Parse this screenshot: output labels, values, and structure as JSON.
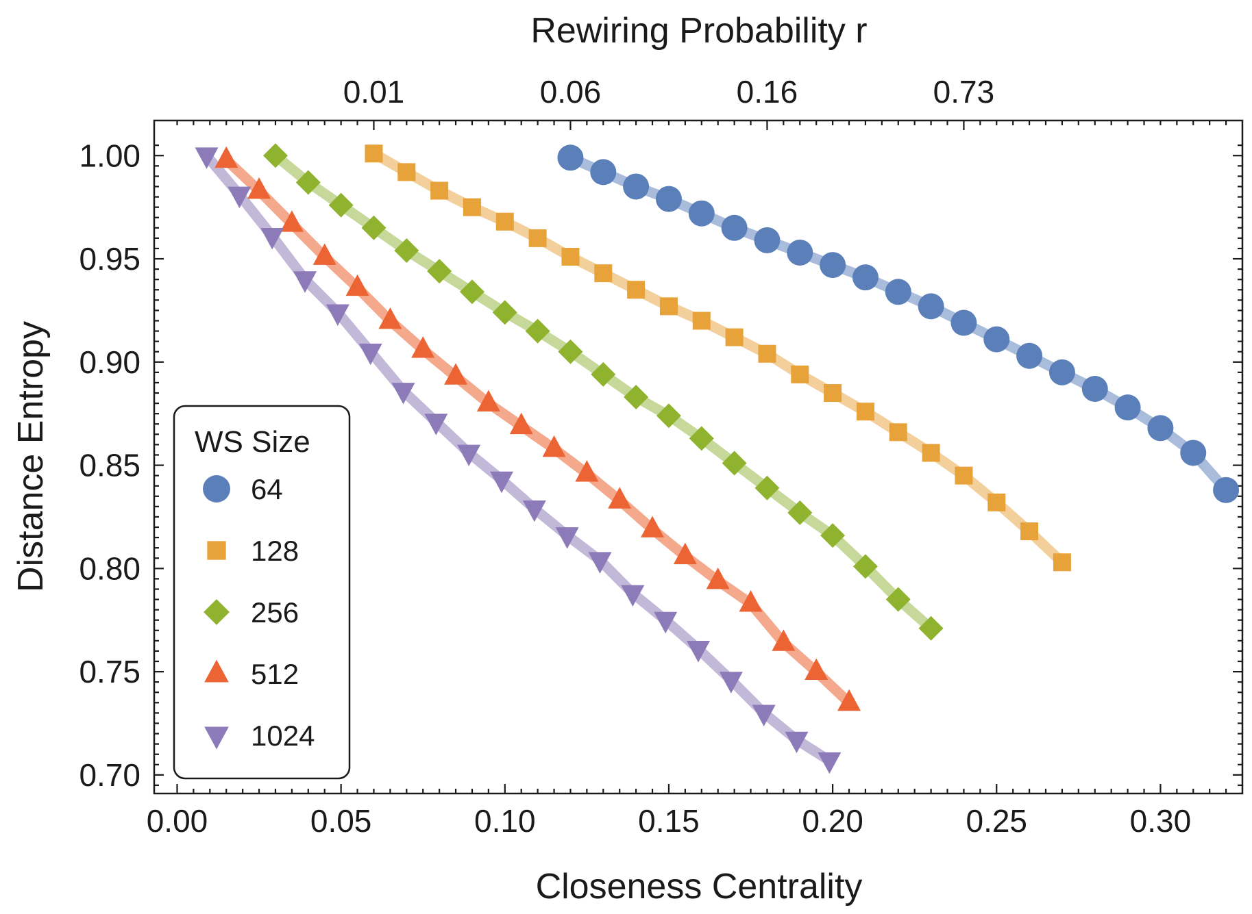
{
  "chart_data": {
    "type": "line",
    "title": "",
    "xlabel": "Closeness Centrality",
    "ylabel": "Distance Entropy",
    "top_xlabel": "Rewiring Probability r",
    "xlim": [
      -0.007,
      0.325
    ],
    "ylim": [
      0.691,
      1.017
    ],
    "x_ticks": [
      {
        "value": 0.0,
        "label": "0.00"
      },
      {
        "value": 0.05,
        "label": "0.05"
      },
      {
        "value": 0.1,
        "label": "0.10"
      },
      {
        "value": 0.15,
        "label": "0.15"
      },
      {
        "value": 0.2,
        "label": "0.20"
      },
      {
        "value": 0.25,
        "label": "0.25"
      },
      {
        "value": 0.3,
        "label": "0.30"
      }
    ],
    "y_ticks": [
      {
        "value": 0.7,
        "label": "0.70"
      },
      {
        "value": 0.75,
        "label": "0.75"
      },
      {
        "value": 0.8,
        "label": "0.80"
      },
      {
        "value": 0.85,
        "label": "0.85"
      },
      {
        "value": 0.9,
        "label": "0.90"
      },
      {
        "value": 0.95,
        "label": "0.95"
      },
      {
        "value": 1.0,
        "label": "1.00"
      }
    ],
    "top_ticks": [
      {
        "value": 0.06,
        "label": "0.01"
      },
      {
        "value": 0.12,
        "label": "0.06"
      },
      {
        "value": 0.18,
        "label": "0.16"
      },
      {
        "value": 0.24,
        "label": "0.73"
      }
    ],
    "legend": {
      "title": "WS Size",
      "position": "bottom-left"
    },
    "series": [
      {
        "name": "64",
        "marker": "circle",
        "color": "#5b7fb8",
        "line_color": "#a9bcdc",
        "x": [
          0.12,
          0.13,
          0.14,
          0.15,
          0.16,
          0.17,
          0.18,
          0.19,
          0.2,
          0.21,
          0.22,
          0.23,
          0.24,
          0.25,
          0.26,
          0.27,
          0.28,
          0.29,
          0.3,
          0.31,
          0.32
        ],
        "y": [
          0.999,
          0.992,
          0.985,
          0.979,
          0.972,
          0.965,
          0.959,
          0.953,
          0.947,
          0.941,
          0.934,
          0.927,
          0.919,
          0.911,
          0.903,
          0.895,
          0.887,
          0.878,
          0.868,
          0.856,
          0.838
        ]
      },
      {
        "name": "128",
        "marker": "square",
        "color": "#e8a23a",
        "line_color": "#f2cf9b",
        "x": [
          0.06,
          0.07,
          0.08,
          0.09,
          0.1,
          0.11,
          0.12,
          0.13,
          0.14,
          0.15,
          0.16,
          0.17,
          0.18,
          0.19,
          0.2,
          0.21,
          0.22,
          0.23,
          0.24,
          0.25,
          0.26,
          0.27
        ],
        "y": [
          1.001,
          0.992,
          0.983,
          0.975,
          0.968,
          0.96,
          0.951,
          0.943,
          0.935,
          0.927,
          0.92,
          0.912,
          0.904,
          0.894,
          0.885,
          0.876,
          0.866,
          0.856,
          0.845,
          0.832,
          0.818,
          0.803
        ]
      },
      {
        "name": "256",
        "marker": "diamond",
        "color": "#8fb32e",
        "line_color": "#c6d99a",
        "x": [
          0.03,
          0.04,
          0.05,
          0.06,
          0.07,
          0.08,
          0.09,
          0.1,
          0.11,
          0.12,
          0.13,
          0.14,
          0.15,
          0.16,
          0.17,
          0.18,
          0.19,
          0.2,
          0.21,
          0.22,
          0.23
        ],
        "y": [
          1.0,
          0.987,
          0.976,
          0.965,
          0.954,
          0.944,
          0.934,
          0.924,
          0.915,
          0.905,
          0.894,
          0.883,
          0.874,
          0.863,
          0.851,
          0.839,
          0.827,
          0.816,
          0.801,
          0.785,
          0.771
        ]
      },
      {
        "name": "512",
        "marker": "triangle-up",
        "color": "#ec6334",
        "line_color": "#f4a98d",
        "x": [
          0.015,
          0.025,
          0.035,
          0.045,
          0.055,
          0.065,
          0.075,
          0.085,
          0.095,
          0.105,
          0.115,
          0.125,
          0.135,
          0.145,
          0.155,
          0.165,
          0.175,
          0.185,
          0.195,
          0.205
        ],
        "y": [
          0.998,
          0.983,
          0.967,
          0.951,
          0.936,
          0.92,
          0.906,
          0.893,
          0.88,
          0.869,
          0.858,
          0.846,
          0.833,
          0.819,
          0.806,
          0.794,
          0.783,
          0.764,
          0.75,
          0.735
        ]
      },
      {
        "name": "1024",
        "marker": "triangle-down",
        "color": "#8c7bb8",
        "line_color": "#c2b9d9",
        "x": [
          0.009,
          0.019,
          0.029,
          0.039,
          0.049,
          0.059,
          0.069,
          0.079,
          0.089,
          0.099,
          0.109,
          0.119,
          0.129,
          0.139,
          0.149,
          0.159,
          0.169,
          0.179,
          0.189,
          0.199
        ],
        "y": [
          1.0,
          0.981,
          0.961,
          0.94,
          0.924,
          0.905,
          0.886,
          0.871,
          0.856,
          0.843,
          0.829,
          0.816,
          0.804,
          0.788,
          0.775,
          0.761,
          0.746,
          0.73,
          0.717,
          0.707
        ]
      }
    ]
  }
}
